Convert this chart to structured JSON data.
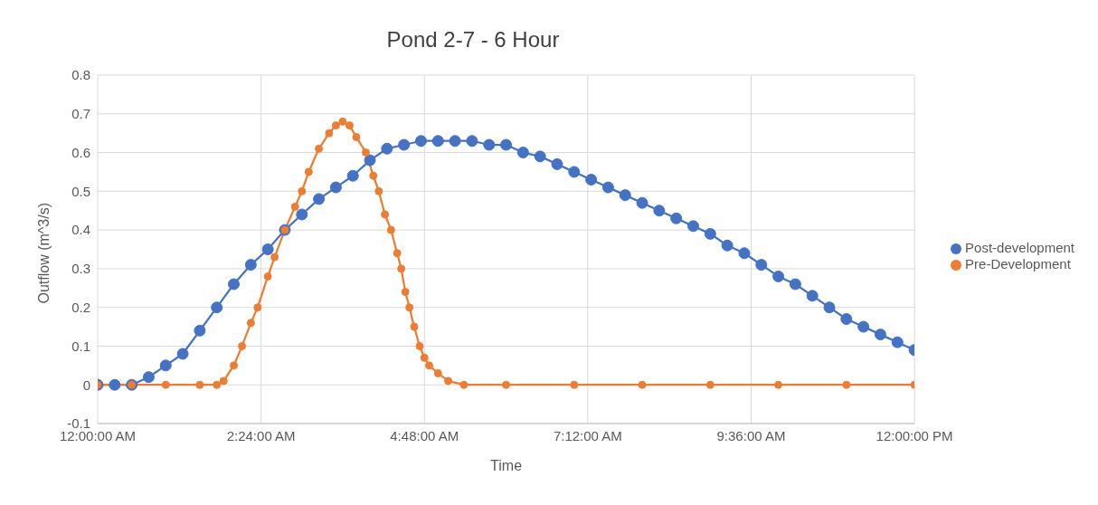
{
  "chart_data": {
    "type": "line",
    "title": "Pond 2-7 - 6 Hour",
    "xlabel": "Time",
    "ylabel": "Outflow (m^3/s)",
    "xlim": [
      0,
      12
    ],
    "xticks": [
      {
        "value": 0,
        "label": "12:00:00 AM"
      },
      {
        "value": 2.4,
        "label": "2:24:00 AM"
      },
      {
        "value": 4.8,
        "label": "4:48:00 AM"
      },
      {
        "value": 7.2,
        "label": "7:12:00 AM"
      },
      {
        "value": 9.6,
        "label": "9:36:00 AM"
      },
      {
        "value": 12,
        "label": "12:00:00 PM"
      }
    ],
    "ylim": [
      -0.1,
      0.8
    ],
    "yticks": [
      -0.1,
      0,
      0.1,
      0.2,
      0.3,
      0.4,
      0.5,
      0.6,
      0.7,
      0.8
    ],
    "grid": true,
    "legend": "right",
    "marker": "circle",
    "line_style": "solid",
    "series": [
      {
        "name": "Post-development",
        "color": "#4472c4",
        "x": [
          0,
          0.25,
          0.5,
          0.75,
          1,
          1.25,
          1.5,
          1.75,
          2,
          2.25,
          2.5,
          2.75,
          3,
          3.25,
          3.5,
          3.75,
          4,
          4.25,
          4.5,
          4.75,
          5,
          5.25,
          5.5,
          5.75,
          6,
          6.25,
          6.5,
          6.75,
          7,
          7.25,
          7.5,
          7.75,
          8,
          8.25,
          8.5,
          8.75,
          9,
          9.25,
          9.5,
          9.75,
          10,
          10.25,
          10.5,
          10.75,
          11,
          11.25,
          11.5,
          11.75,
          12
        ],
        "values": [
          0,
          0,
          0,
          0.02,
          0.05,
          0.08,
          0.14,
          0.2,
          0.26,
          0.31,
          0.35,
          0.4,
          0.44,
          0.48,
          0.51,
          0.54,
          0.58,
          0.61,
          0.62,
          0.63,
          0.63,
          0.63,
          0.63,
          0.62,
          0.62,
          0.6,
          0.59,
          0.57,
          0.55,
          0.53,
          0.51,
          0.49,
          0.47,
          0.45,
          0.43,
          0.41,
          0.39,
          0.36,
          0.34,
          0.31,
          0.28,
          0.26,
          0.23,
          0.2,
          0.17,
          0.15,
          0.13,
          0.11,
          0.09
        ]
      },
      {
        "name": "Pre-Development",
        "color": "#ed7d31",
        "x": [
          0,
          0.5,
          1,
          1.5,
          1.75,
          1.85,
          2,
          2.12,
          2.25,
          2.35,
          2.5,
          2.6,
          2.75,
          2.9,
          3,
          3.1,
          3.25,
          3.4,
          3.5,
          3.6,
          3.7,
          3.8,
          3.94,
          4.05,
          4.13,
          4.22,
          4.31,
          4.4,
          4.46,
          4.52,
          4.58,
          4.65,
          4.73,
          4.8,
          4.87,
          5,
          5.15,
          5.38,
          6,
          7,
          8,
          9,
          10,
          11,
          12
        ],
        "values": [
          0,
          0,
          0,
          0,
          0,
          0.01,
          0.05,
          0.1,
          0.16,
          0.2,
          0.28,
          0.33,
          0.4,
          0.46,
          0.5,
          0.55,
          0.61,
          0.65,
          0.67,
          0.68,
          0.67,
          0.64,
          0.6,
          0.54,
          0.5,
          0.44,
          0.4,
          0.34,
          0.3,
          0.24,
          0.2,
          0.15,
          0.1,
          0.07,
          0.05,
          0.03,
          0.01,
          0,
          0,
          0,
          0,
          0,
          0,
          0,
          0
        ]
      }
    ]
  }
}
